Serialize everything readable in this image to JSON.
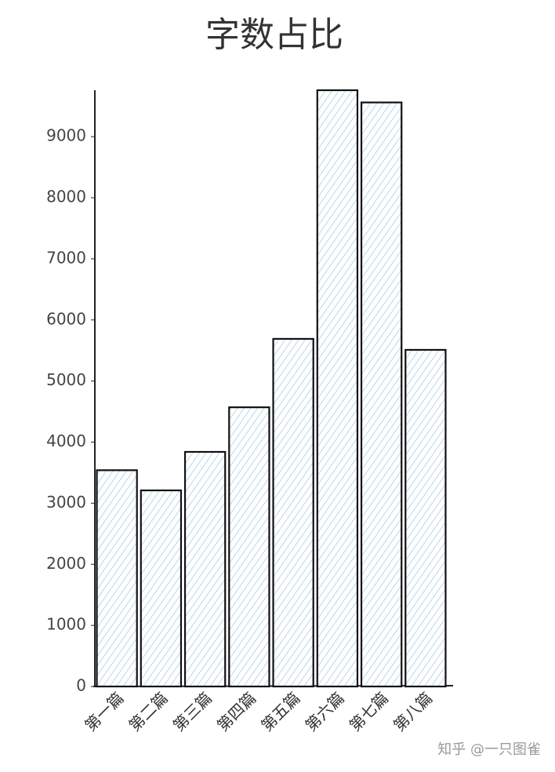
{
  "chart_data": {
    "type": "bar",
    "title": "字数占比",
    "categories": [
      "第一篇",
      "第二篇",
      "第三篇",
      "第四篇",
      "第五篇",
      "第六篇",
      "第七篇",
      "第八篇"
    ],
    "values": [
      3540,
      3210,
      3840,
      4570,
      5690,
      9760,
      9560,
      5510
    ],
    "color": "#a6cfe2",
    "ylim": [
      0,
      9760
    ],
    "yticks": [
      0,
      1000,
      2000,
      3000,
      4000,
      5000,
      6000,
      7000,
      8000,
      9000
    ],
    "grid": false,
    "annotation": "知乎 @一只图雀"
  }
}
